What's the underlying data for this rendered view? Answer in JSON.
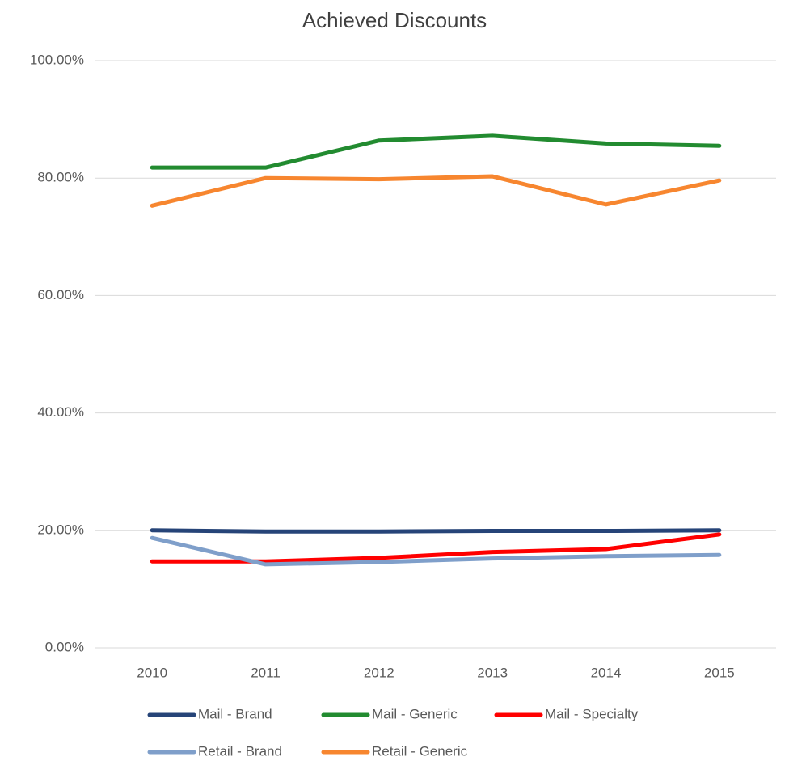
{
  "chart_data": {
    "type": "line",
    "title": "Achieved Discounts",
    "categories": [
      "2010",
      "2011",
      "2012",
      "2013",
      "2014",
      "2015"
    ],
    "series": [
      {
        "name": "Mail - Brand",
        "color": "#264478",
        "values": [
          20.0,
          19.8,
          19.8,
          19.9,
          19.9,
          20.0
        ]
      },
      {
        "name": "Mail - Generic",
        "color": "#228b30",
        "values": [
          81.8,
          81.8,
          86.4,
          87.2,
          85.9,
          85.5
        ]
      },
      {
        "name": "Mail - Specialty",
        "color": "#ff0000",
        "values": [
          14.7,
          14.7,
          15.3,
          16.3,
          16.8,
          19.3
        ]
      },
      {
        "name": "Retail - Brand",
        "color": "#7f9fca",
        "values": [
          18.7,
          14.2,
          14.6,
          15.2,
          15.6,
          15.8
        ]
      },
      {
        "name": "Retail - Generic",
        "color": "#f7862f",
        "values": [
          75.3,
          80.0,
          79.8,
          80.3,
          75.5,
          79.6
        ]
      }
    ],
    "ylim": [
      0,
      100
    ],
    "yticks": [
      {
        "value": 0,
        "label": "0.00%"
      },
      {
        "value": 20,
        "label": "20.00%"
      },
      {
        "value": 40,
        "label": "40.00%"
      },
      {
        "value": 60,
        "label": "60.00%"
      },
      {
        "value": 80,
        "label": "80.00%"
      },
      {
        "value": 100,
        "label": "100.00%"
      }
    ],
    "grid": true,
    "legend": "bottom"
  }
}
